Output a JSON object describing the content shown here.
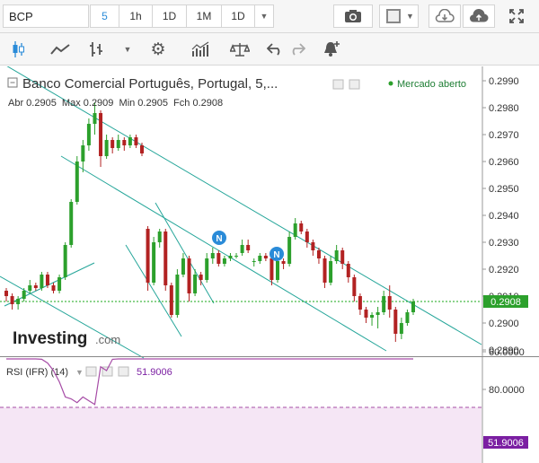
{
  "topbar": {
    "symbol": "BCP",
    "intervals": [
      "5",
      "1h",
      "1D",
      "1M",
      "1D"
    ],
    "active_interval": "5"
  },
  "legend": {
    "name": "Banco Comercial Português, Portugal, 5,...",
    "status": "Mercado aberto",
    "ohlc": "Abr 0.2905  Max 0.2909  Min 0.2905  Fch 0.2908"
  },
  "watermark": {
    "brand": "Investing",
    "suffix": ".com"
  },
  "price_axis": {
    "ticks": [
      "0.2990",
      "0.2980",
      "0.2970",
      "0.2960",
      "0.2950",
      "0.2940",
      "0.2930",
      "0.2920",
      "0.2910",
      "0.2900",
      "0.2890"
    ],
    "current": "0.2908"
  },
  "rsi": {
    "label": "RSI (IFR) (14)",
    "value": "51.9006",
    "ticks": [
      "80.0000",
      "60.0000"
    ]
  },
  "news_marker": "N",
  "colors": {
    "up": "#2ca02c",
    "down": "#b22222",
    "trend": "#26a69a",
    "rsi": "#a64ca6",
    "accent": "#2a8bd8"
  },
  "chart_data": {
    "type": "candlestick",
    "ylim": [
      0.2885,
      0.2995
    ],
    "last_price": 0.2908,
    "candles": [
      [
        0.2912,
        0.2913,
        0.2908,
        0.291
      ],
      [
        0.291,
        0.2911,
        0.2905,
        0.2907
      ],
      [
        0.2907,
        0.291,
        0.2905,
        0.2909
      ],
      [
        0.2909,
        0.2913,
        0.2908,
        0.2912
      ],
      [
        0.2912,
        0.2916,
        0.2911,
        0.2914
      ],
      [
        0.2914,
        0.2915,
        0.2912,
        0.2913
      ],
      [
        0.2913,
        0.2919,
        0.2912,
        0.2918
      ],
      [
        0.2918,
        0.2919,
        0.2913,
        0.2914
      ],
      [
        0.2914,
        0.2915,
        0.2911,
        0.2912
      ],
      [
        0.2912,
        0.2918,
        0.2911,
        0.2917
      ],
      [
        0.2917,
        0.293,
        0.2916,
        0.2929
      ],
      [
        0.2929,
        0.2946,
        0.2928,
        0.2945
      ],
      [
        0.2945,
        0.2962,
        0.2944,
        0.296
      ],
      [
        0.296,
        0.2968,
        0.2956,
        0.2966
      ],
      [
        0.2966,
        0.2976,
        0.2964,
        0.2974
      ],
      [
        0.2974,
        0.2982,
        0.297,
        0.2978
      ],
      [
        0.2978,
        0.2979,
        0.2958,
        0.2962
      ],
      [
        0.2962,
        0.297,
        0.2961,
        0.2968
      ],
      [
        0.2968,
        0.2969,
        0.2963,
        0.2965
      ],
      [
        0.2965,
        0.297,
        0.2964,
        0.2968
      ],
      [
        0.2968,
        0.2969,
        0.2964,
        0.2966
      ],
      [
        0.2966,
        0.297,
        0.2965,
        0.2969
      ],
      [
        0.2969,
        0.297,
        0.2965,
        0.2966
      ],
      [
        0.2966,
        0.2967,
        0.2962,
        0.2963
      ],
      [
        0.2935,
        0.2936,
        0.2912,
        0.2915
      ],
      [
        0.2915,
        0.2932,
        0.2914,
        0.293
      ],
      [
        0.293,
        0.2935,
        0.2928,
        0.2934
      ],
      [
        0.2934,
        0.2935,
        0.2912,
        0.2914
      ],
      [
        0.2914,
        0.2915,
        0.2902,
        0.2903
      ],
      [
        0.2903,
        0.292,
        0.2902,
        0.2918
      ],
      [
        0.2918,
        0.2926,
        0.2917,
        0.2924
      ],
      [
        0.2924,
        0.2925,
        0.2908,
        0.2911
      ],
      [
        0.2911,
        0.292,
        0.291,
        0.2918
      ],
      [
        0.2918,
        0.2919,
        0.2914,
        0.2916
      ],
      [
        0.2916,
        0.2926,
        0.2915,
        0.2924
      ],
      [
        0.2924,
        0.2928,
        0.2922,
        0.2926
      ],
      [
        0.2926,
        0.2927,
        0.2921,
        0.2922
      ],
      [
        0.2922,
        0.2925,
        0.2921,
        0.2924
      ],
      [
        0.2924,
        0.2926,
        0.2923,
        0.2925
      ],
      [
        0.2925,
        0.2926,
        0.2924,
        0.2925
      ],
      [
        0.2926,
        0.2931,
        0.2925,
        0.2929
      ],
      [
        0.2929,
        0.2931,
        0.2926,
        0.2927
      ],
      [
        0.2923,
        0.2924,
        0.2921,
        0.2923
      ],
      [
        0.2923,
        0.2926,
        0.2922,
        0.2925
      ],
      [
        0.2925,
        0.2926,
        0.2923,
        0.2924
      ],
      [
        0.2924,
        0.2925,
        0.2914,
        0.2916
      ],
      [
        0.2916,
        0.2925,
        0.2915,
        0.2923
      ],
      [
        0.2923,
        0.2924,
        0.292,
        0.2922
      ],
      [
        0.2922,
        0.2934,
        0.2921,
        0.2932
      ],
      [
        0.2932,
        0.2939,
        0.2931,
        0.2937
      ],
      [
        0.2937,
        0.2938,
        0.2933,
        0.2934
      ],
      [
        0.2934,
        0.2935,
        0.2928,
        0.293
      ],
      [
        0.293,
        0.2931,
        0.2925,
        0.2927
      ],
      [
        0.2927,
        0.2928,
        0.2922,
        0.2924
      ],
      [
        0.2924,
        0.2925,
        0.2913,
        0.2915
      ],
      [
        0.2915,
        0.2925,
        0.2914,
        0.2923
      ],
      [
        0.2923,
        0.2929,
        0.2922,
        0.2927
      ],
      [
        0.2927,
        0.2928,
        0.292,
        0.2922
      ],
      [
        0.2922,
        0.2923,
        0.2915,
        0.2917
      ],
      [
        0.2917,
        0.2918,
        0.2908,
        0.291
      ],
      [
        0.291,
        0.2911,
        0.2903,
        0.2905
      ],
      [
        0.2905,
        0.2906,
        0.29,
        0.2902
      ],
      [
        0.2902,
        0.2904,
        0.2899,
        0.2903
      ],
      [
        0.2903,
        0.2906,
        0.2898,
        0.2904
      ],
      [
        0.2904,
        0.2912,
        0.2903,
        0.291
      ],
      [
        0.291,
        0.2914,
        0.2902,
        0.2905
      ],
      [
        0.2905,
        0.2906,
        0.2893,
        0.2896
      ],
      [
        0.2896,
        0.2902,
        0.2894,
        0.29
      ],
      [
        0.29,
        0.2905,
        0.2899,
        0.2904
      ],
      [
        0.2904,
        0.2909,
        0.2903,
        0.2908
      ]
    ],
    "rsi_values": [
      58,
      52,
      55,
      54,
      56,
      60,
      64,
      66,
      70,
      76,
      84,
      85,
      87,
      84,
      86,
      88,
      68,
      70,
      64,
      63,
      61,
      60,
      55,
      52,
      38,
      36,
      40,
      35,
      30,
      40,
      44,
      42,
      45,
      42,
      44,
      46,
      44,
      42,
      44,
      44,
      48,
      46,
      42,
      44,
      43,
      40,
      44,
      44,
      52,
      60,
      56,
      52,
      50,
      48,
      44,
      46,
      48,
      46,
      44,
      40,
      36,
      34,
      36,
      38,
      44,
      40,
      34,
      40,
      46,
      52
    ]
  }
}
